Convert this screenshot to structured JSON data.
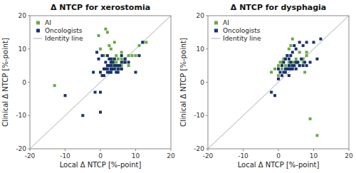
{
  "chart_data": [
    {
      "type": "scatter",
      "title": "Δ NTCP for xerostomia",
      "xlabel": "Local Δ NTCP [%-point]",
      "ylabel": "Clinical Δ NTCP [%-point]",
      "series": [
        {
          "name": "AI",
          "color": "#6aaa48",
          "marker": "square",
          "x": [
            -13,
            -0.5,
            0,
            1,
            1.5,
            2,
            2,
            2.5,
            2.5,
            3,
            3,
            3,
            3,
            3,
            3.5,
            3.5,
            3.5,
            3.5,
            4,
            4,
            4,
            4,
            4.5,
            4.5,
            4.5,
            5,
            5,
            5,
            5.5,
            5.5,
            6,
            6,
            6,
            6,
            6.5,
            7,
            7,
            8,
            8,
            9,
            10,
            11,
            12,
            13
          ],
          "values": [
            -1,
            14,
            10,
            8,
            16,
            5,
            15,
            5,
            11,
            3,
            4,
            5,
            6,
            10,
            4,
            5,
            6,
            7,
            4,
            5,
            6,
            12,
            5,
            6,
            8,
            4,
            5,
            7,
            4,
            5,
            4,
            5,
            7,
            9,
            6,
            6,
            7,
            5,
            8,
            8,
            8,
            11,
            12,
            12
          ]
        },
        {
          "name": "Oncologists",
          "color": "#1a3070",
          "marker": "square",
          "x": [
            -10,
            -5,
            -2,
            -1.5,
            -1,
            -0.5,
            0,
            0,
            0,
            0.5,
            0.5,
            1,
            1,
            1.5,
            1.5,
            2,
            2,
            2,
            2,
            2.5,
            2.5,
            2.5,
            3,
            3,
            3,
            3,
            3,
            3.5,
            3.5,
            4,
            4,
            4,
            4.5,
            4.5,
            5,
            5,
            5,
            5.5,
            6,
            6,
            6,
            7,
            7,
            8,
            10,
            11,
            12
          ],
          "values": [
            -4,
            -10,
            3,
            -3,
            9,
            7,
            3,
            -3,
            -9,
            2,
            8,
            2,
            4,
            4,
            6,
            3,
            4,
            5,
            8,
            3,
            5,
            7,
            3,
            4,
            5,
            6,
            7,
            4,
            6,
            4,
            5,
            7,
            3,
            5,
            3,
            4,
            5,
            5,
            4,
            6,
            8,
            6,
            7,
            6,
            3,
            8,
            12
          ]
        },
        {
          "name": "Identity line",
          "type": "line",
          "color": "#c8c8c8",
          "line_style": "solid",
          "x": [
            -20,
            20
          ],
          "values": [
            -20,
            20
          ]
        }
      ],
      "xlim": [
        -20,
        20
      ],
      "ylim": [
        -20,
        20
      ],
      "xticks": [
        -20,
        -10,
        0,
        10,
        20
      ],
      "yticks": [
        -20,
        -10,
        0,
        10,
        20
      ],
      "grid": false,
      "legend": "upper left"
    },
    {
      "type": "scatter",
      "title": "Δ NTCP for dysphagia",
      "xlabel": "Local Δ NTCP [%-point]",
      "ylabel": "Clinical Δ NTCP [%-point]",
      "series": [
        {
          "name": "AI",
          "color": "#6aaa48",
          "marker": "square",
          "x": [
            -2,
            -1,
            0,
            0,
            0,
            0.5,
            1,
            1,
            1.5,
            2,
            2,
            2.5,
            2.5,
            3,
            3,
            3,
            3.5,
            3.5,
            4,
            4,
            4,
            4.5,
            5,
            5,
            5.5,
            6,
            6,
            7,
            7,
            7.5,
            8,
            8,
            9,
            11
          ],
          "values": [
            3,
            4,
            2,
            4,
            5,
            6,
            4,
            6,
            7,
            5,
            7,
            4,
            8,
            5,
            6,
            10,
            5,
            11,
            5,
            6,
            13,
            6,
            6,
            7,
            6,
            5,
            9,
            6,
            7,
            3,
            8,
            9,
            -11,
            -16
          ]
        },
        {
          "name": "Oncologists",
          "color": "#1a3070",
          "marker": "square",
          "x": [
            -2,
            -1,
            0,
            0,
            0.5,
            1,
            1,
            1.5,
            1.5,
            2,
            2,
            2,
            2.5,
            2.5,
            3,
            3,
            3,
            3,
            3.5,
            3.5,
            3.5,
            4,
            4,
            4,
            4.5,
            4.5,
            5,
            5,
            5,
            5.5,
            6,
            6,
            6.5,
            7,
            7,
            7.5,
            8,
            8,
            9,
            10,
            11,
            12
          ],
          "values": [
            -3,
            -4,
            1,
            4,
            3,
            2,
            5,
            3,
            6,
            3,
            4,
            7,
            4,
            8,
            2,
            4,
            5,
            7,
            4,
            6,
            8,
            4,
            5,
            9,
            5,
            11,
            4,
            6,
            10,
            6,
            5,
            12,
            7,
            5,
            11,
            6,
            5,
            12,
            6,
            12,
            7,
            13
          ]
        },
        {
          "name": "Identity line",
          "type": "line",
          "color": "#c8c8c8",
          "line_style": "solid",
          "x": [
            -20,
            20
          ],
          "values": [
            -20,
            20
          ]
        }
      ],
      "xlim": [
        -20,
        20
      ],
      "ylim": [
        -20,
        20
      ],
      "xticks": [
        -20,
        -10,
        0,
        10,
        20
      ],
      "yticks": [
        -20,
        -10,
        0,
        10,
        20
      ],
      "grid": false,
      "legend": "upper left"
    }
  ]
}
